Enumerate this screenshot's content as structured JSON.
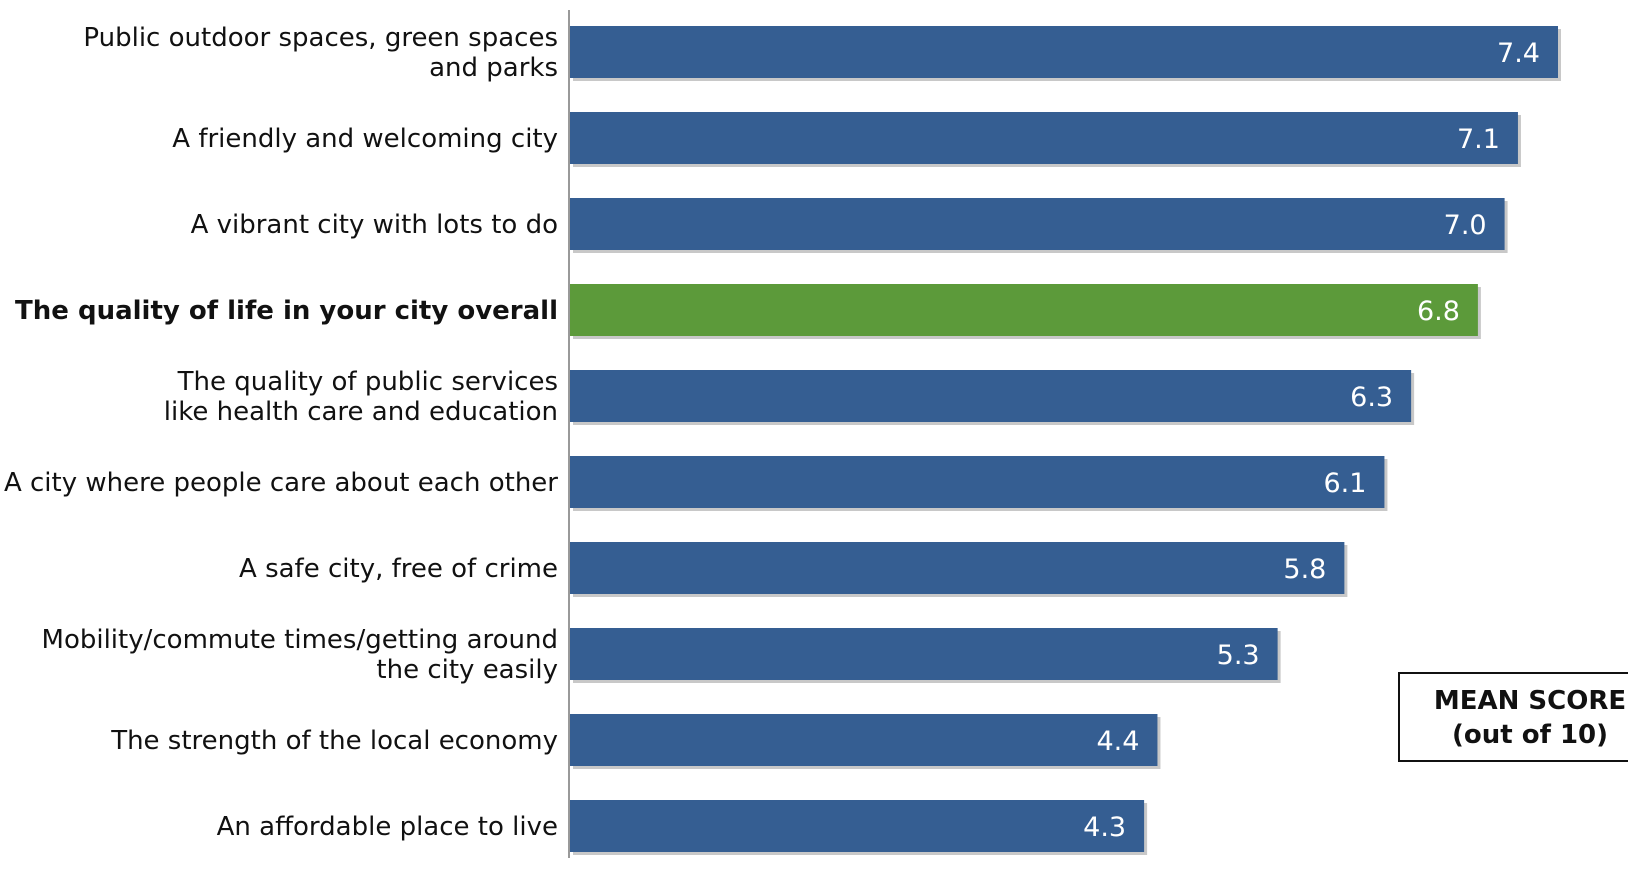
{
  "chart_data": {
    "type": "bar",
    "orientation": "horizontal",
    "categories": [
      [
        "Public outdoor spaces, green spaces",
        "and parks"
      ],
      [
        "A friendly and welcoming city"
      ],
      [
        "A vibrant city with lots to do"
      ],
      [
        "The quality of life in your city overall"
      ],
      [
        "The quality of public services",
        "like health care and education"
      ],
      [
        "A city where people care about each other"
      ],
      [
        "A safe city, free of crime"
      ],
      [
        "Mobility/commute times/getting around",
        "the city easily"
      ],
      [
        "The strength of the local economy"
      ],
      [
        "An affordable place to live"
      ]
    ],
    "values": [
      7.4,
      7.1,
      7.0,
      6.8,
      6.3,
      6.1,
      5.8,
      5.3,
      4.4,
      4.3
    ],
    "value_labels": [
      "7.4",
      "7.1",
      "7.0",
      "6.8",
      "6.3",
      "6.1",
      "5.8",
      "5.3",
      "4.4",
      "4.3"
    ],
    "highlight_index": 3,
    "colors": {
      "bar": "#355e92",
      "highlight_bar": "#5c9a3a",
      "axis": "#999999"
    },
    "xlim": [
      0,
      7.8
    ],
    "grid": false,
    "legend": {
      "line1": "MEAN SCORE",
      "line2": "(out of 10)",
      "placement": "bottom-right"
    }
  }
}
